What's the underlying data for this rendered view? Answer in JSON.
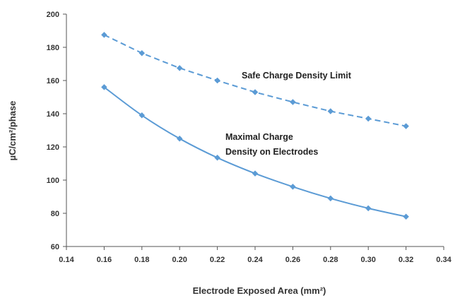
{
  "chart_data": {
    "type": "line",
    "title": "",
    "xlabel": "Electrode Exposed Area (mm²)",
    "ylabel": "µC/cm²/phase",
    "xlim": [
      0.14,
      0.34
    ],
    "ylim": [
      60,
      200
    ],
    "x_ticks": [
      "0.14",
      "0.16",
      "0.18",
      "0.20",
      "0.22",
      "0.24",
      "0.26",
      "0.28",
      "0.30",
      "0.32",
      "0.34"
    ],
    "y_ticks": [
      "60",
      "80",
      "100",
      "120",
      "140",
      "160",
      "180",
      "200"
    ],
    "x": [
      0.16,
      0.18,
      0.2,
      0.22,
      0.24,
      0.26,
      0.28,
      0.3,
      0.32
    ],
    "series": [
      {
        "values": [
          187.5,
          176.5,
          167.5,
          160,
          153,
          147,
          141.5,
          137,
          132.5
        ],
        "line_style": "dashed",
        "color": "#5b9bd5"
      },
      {
        "values": [
          156,
          139,
          125,
          113.5,
          104,
          96,
          89,
          83,
          78
        ],
        "line_style": "solid",
        "color": "#5b9bd5"
      }
    ],
    "annotations": [
      {
        "lines": [
          "Safe Charge Density Limit"
        ]
      },
      {
        "lines": [
          "Maximal Charge",
          "Density on Electrodes"
        ]
      }
    ],
    "grid": false,
    "legend": "none"
  }
}
